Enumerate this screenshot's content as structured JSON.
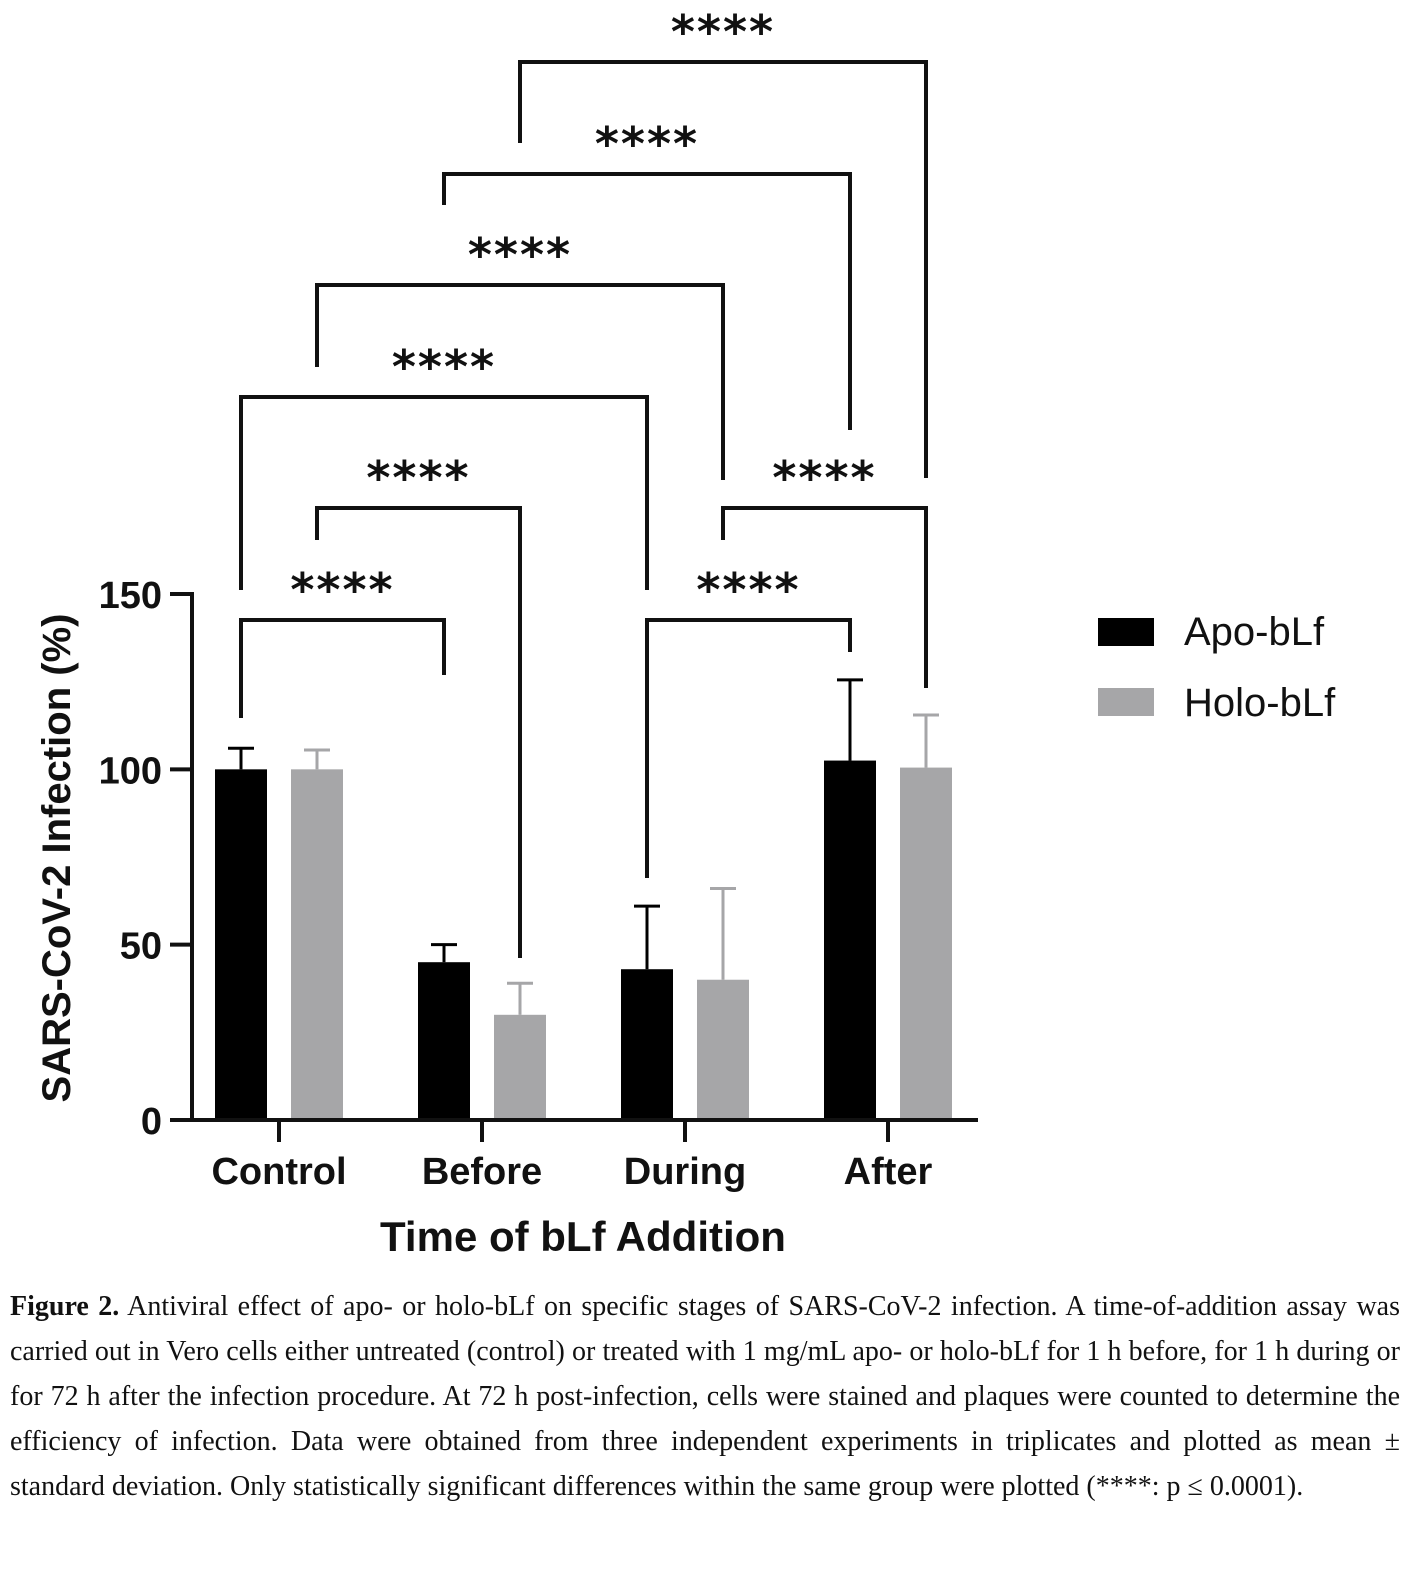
{
  "chart_data": {
    "type": "bar",
    "categories": [
      "Control",
      "Before",
      "During",
      "After"
    ],
    "series": [
      {
        "name": "Apo-bLf",
        "color": "#000000",
        "values": [
          100,
          45,
          43,
          102.5
        ],
        "error": [
          6,
          5,
          18,
          23
        ]
      },
      {
        "name": "Holo-bLf",
        "color": "#a6a6a8",
        "values": [
          100,
          30,
          40,
          100.5
        ],
        "error": [
          5.5,
          9,
          26,
          15
        ]
      }
    ],
    "xlabel": "Time of bLf Addition",
    "ylabel": "SARS-CoV-2 Infection (%)",
    "ylim": [
      0,
      150
    ],
    "yticks": [
      0,
      50,
      100,
      150
    ],
    "legend_position": "right",
    "significance_label": "****",
    "comparisons": [
      {
        "from": "Control / Apo-bLf",
        "to": "Before / Apo-bLf",
        "label": "****"
      },
      {
        "from": "Control / Holo-bLf",
        "to": "Before / Holo-bLf",
        "label": "****"
      },
      {
        "from": "Control / Apo-bLf",
        "to": "During / Apo-bLf",
        "label": "****"
      },
      {
        "from": "Control / Holo-bLf",
        "to": "During / Holo-bLf",
        "label": "****"
      },
      {
        "from": "Before / Apo-bLf",
        "to": "After / Apo-bLf",
        "label": "****"
      },
      {
        "from": "Before / Holo-bLf",
        "to": "After / Holo-bLf",
        "label": "****"
      },
      {
        "from": "During / Apo-bLf",
        "to": "After / Apo-bLf",
        "label": "****"
      },
      {
        "from": "During / Holo-bLf",
        "to": "After / Holo-bLf",
        "label": "****"
      }
    ]
  },
  "caption": {
    "label": "Figure 2.",
    "text": " Antiviral effect of apo- or holo-bLf on specific stages of SARS-CoV-2 infection. A time-of-addition assay was carried out in Vero cells either untreated (control) or treated with 1 mg/mL apo- or holo-bLf for 1 h before, for 1 h during or for 72 h after the infection procedure. At 72 h post-infection, cells were stained and plaques were counted to determine the efficiency of infection. Data were obtained from three independent experiments in triplicates and plotted as mean ± standard deviation. Only statistically significant differences within the same group were plotted (****: p ≤ 0.0001)."
  }
}
